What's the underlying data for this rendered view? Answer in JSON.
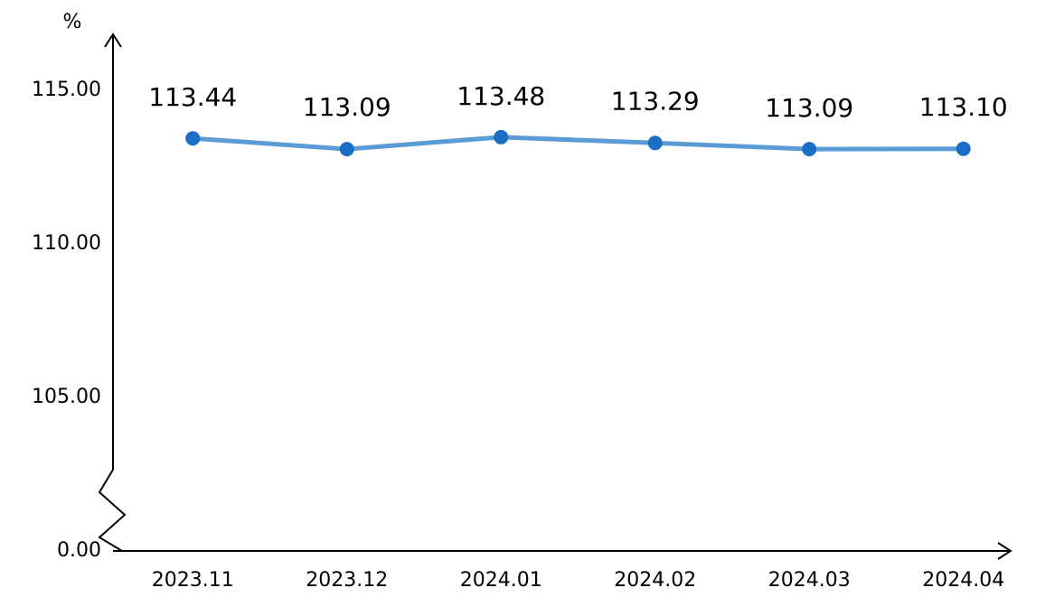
{
  "chart_data": {
    "type": "line",
    "y_label": "%",
    "categories": [
      "2023.11",
      "2023.12",
      "2024.01",
      "2024.02",
      "2024.03",
      "2024.04"
    ],
    "series": [
      {
        "color": "#5b9bd5",
        "marker_color": "#1a6fc4",
        "values": [
          113.44,
          113.09,
          113.48,
          113.29,
          113.09,
          113.1
        ],
        "value_labels": [
          "113.44",
          "113.09",
          "113.48",
          "113.29",
          "113.09",
          "113.10"
        ]
      }
    ],
    "ylim": [
      0,
      116.8
    ],
    "axis_break": [
      0,
      100
    ],
    "yticks": [
      {
        "value": 0,
        "label": "0.00"
      },
      {
        "value": 105,
        "label": "105.00"
      },
      {
        "value": 110,
        "label": "110.00"
      },
      {
        "value": 115,
        "label": "115.00"
      }
    ],
    "grid": false
  }
}
